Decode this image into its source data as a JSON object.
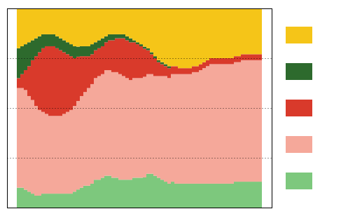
{
  "chart_data": {
    "type": "bar",
    "stacked": true,
    "grid": true,
    "legend": "right",
    "tick_labels": false,
    "categories": [
      null,
      null,
      null,
      null,
      null,
      null,
      null,
      null,
      null,
      null,
      null,
      null,
      null,
      null,
      null,
      null,
      null,
      null,
      null,
      null,
      null,
      null,
      null,
      null,
      null,
      null,
      null,
      null,
      null,
      null,
      null,
      null,
      null,
      null,
      null,
      null,
      null,
      null,
      null,
      null,
      null,
      null,
      null,
      null,
      null,
      null,
      null,
      null,
      null,
      null,
      null,
      null,
      null,
      null,
      null,
      null,
      null,
      null,
      null,
      null,
      null,
      null,
      null,
      null,
      null,
      null,
      null,
      null,
      null,
      null
    ],
    "ylim": [
      0,
      100
    ],
    "yticks": [
      25,
      50,
      75
    ],
    "series": [
      {
        "color": "#7DC87D",
        "values": [
          10,
          10,
          9,
          8,
          7,
          6,
          6,
          7,
          7,
          7,
          7,
          7,
          7,
          7,
          7,
          7,
          8,
          9.090909090909092,
          10,
          11,
          11,
          12,
          14,
          14,
          15,
          16,
          16,
          15,
          15,
          14,
          14,
          14,
          14,
          15,
          15,
          15,
          15.151515151515152,
          17,
          17,
          16,
          15,
          14,
          13,
          12,
          13,
          12,
          12,
          12,
          12,
          12,
          12,
          12,
          12,
          12,
          12,
          12,
          12,
          12,
          12,
          12,
          12,
          12,
          13,
          13,
          13,
          13,
          13,
          13,
          13,
          13
        ]
      },
      {
        "color": "#F5A89A",
        "values": [
          50,
          50,
          50,
          48,
          47,
          45,
          43,
          41,
          40,
          39,
          39,
          39,
          39,
          40,
          41,
          42,
          43,
          44.44444444444444,
          46,
          47,
          49,
          50,
          51,
          52,
          52,
          53,
          53,
          53,
          53,
          53,
          52,
          51,
          50,
          50,
          50,
          50,
          50.505050505050505,
          50,
          50,
          50,
          51,
          52,
          53,
          53,
          54,
          55,
          55,
          55,
          55,
          55,
          56,
          56,
          57,
          58,
          59,
          60,
          60,
          60,
          60,
          60,
          60,
          60,
          60,
          60,
          61,
          61,
          61,
          61,
          61,
          61
        ]
      },
      {
        "color": "#D93A2B",
        "values": [
          5,
          7,
          10,
          15,
          20,
          25,
          29,
          32,
          34,
          35,
          35,
          34,
          33,
          31,
          29,
          27,
          24,
          22.22222222222222,
          20,
          18,
          16,
          15,
          14,
          14,
          14,
          14,
          15,
          16,
          17,
          18,
          19,
          19,
          19,
          18,
          17,
          16,
          14.141414141414142,
          12,
          10,
          9,
          7,
          6,
          5,
          5,
          4,
          4,
          3,
          3,
          3,
          3,
          3,
          3,
          3,
          3,
          3,
          3,
          3,
          3,
          3,
          3,
          3,
          3,
          3,
          3,
          3,
          3,
          3,
          3,
          3,
          3
        ]
      },
      {
        "color": "#2D6A2D",
        "values": [
          15,
          14,
          13,
          12,
          10,
          9,
          8,
          7,
          6,
          6,
          6,
          6,
          6,
          6,
          6,
          6,
          6,
          5.05050505050505,
          5,
          5,
          5,
          5,
          4,
          4,
          4,
          3,
          3,
          3,
          2,
          2,
          2,
          2,
          2,
          1,
          1,
          1,
          1.0101010101010102,
          1,
          1,
          1,
          1,
          1,
          1,
          1,
          0,
          0,
          0,
          0,
          0,
          0,
          0,
          0,
          0,
          0,
          0,
          0,
          0,
          0,
          0,
          0,
          0,
          0,
          0,
          0,
          0,
          0,
          0,
          0,
          0,
          0
        ]
      },
      {
        "color": "#F5C518",
        "values": [
          20,
          19,
          18,
          17,
          16,
          15,
          14,
          13,
          13,
          13,
          13,
          14,
          15,
          16,
          17,
          18,
          19,
          19.19191919191919,
          19,
          19,
          19,
          18,
          17,
          16,
          15,
          14,
          13,
          13,
          13,
          13,
          13,
          14,
          15,
          16,
          17,
          18,
          19.19191919191919,
          20,
          22,
          24,
          26,
          27,
          28,
          29,
          29,
          29,
          30,
          30,
          30,
          30,
          29,
          29,
          28,
          27,
          26,
          25,
          25,
          25,
          25,
          25,
          25,
          25,
          24,
          24,
          23,
          23,
          23,
          23,
          23,
          23
        ]
      }
    ]
  }
}
